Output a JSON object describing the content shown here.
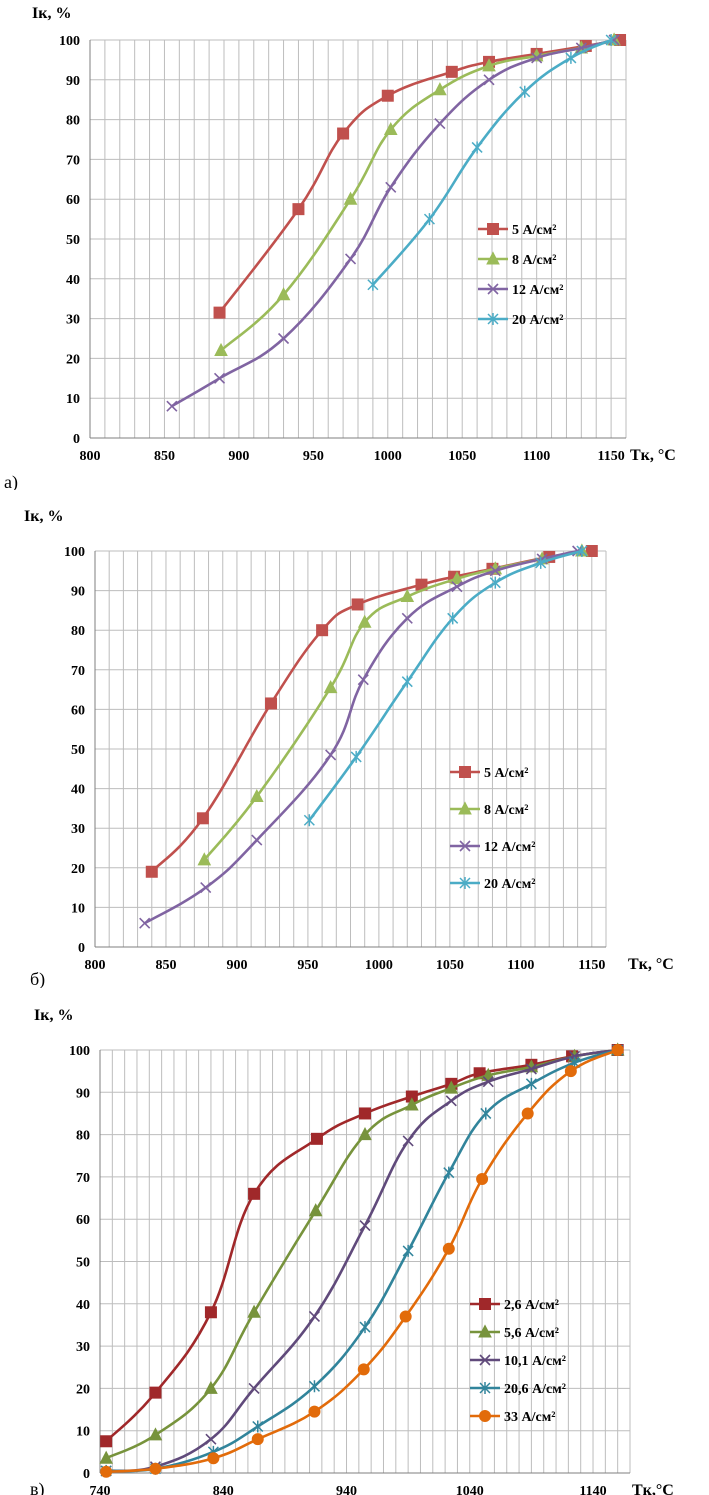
{
  "chart_data": [
    {
      "type": "line",
      "panel_label": "а)",
      "ylabel": "Iк, %",
      "xlabel": "Tк, °C",
      "xlim": [
        800,
        1160
      ],
      "ylim": [
        0,
        100
      ],
      "xticks": [
        800,
        850,
        900,
        950,
        1000,
        1050,
        1100,
        1150
      ],
      "yticks": [
        0,
        10,
        20,
        30,
        40,
        50,
        60,
        70,
        80,
        90,
        100
      ],
      "grid": true,
      "legend_position": "center-right",
      "series": [
        {
          "name": "5 А/см²",
          "color": "#c0504d",
          "marker": "square",
          "x": [
            887,
            940,
            970,
            1000,
            1043,
            1068,
            1100,
            1133,
            1156
          ],
          "y": [
            31.5,
            57.5,
            76.5,
            86,
            92,
            94.5,
            96.5,
            98.5,
            100
          ]
        },
        {
          "name": "8 А/см²",
          "color": "#9bbb59",
          "marker": "triangle",
          "x": [
            888,
            930,
            975,
            1002,
            1035,
            1068,
            1100,
            1130,
            1152
          ],
          "y": [
            22,
            36,
            60,
            77.5,
            87.5,
            93.5,
            96,
            98,
            100
          ]
        },
        {
          "name": "12 А/см²",
          "color": "#8064a2",
          "marker": "cross",
          "x": [
            855,
            887,
            930,
            975,
            1002,
            1035,
            1068,
            1100,
            1130,
            1152
          ],
          "y": [
            8,
            15,
            25,
            45,
            63,
            79,
            90,
            95.5,
            98,
            100
          ]
        },
        {
          "name": "20 А/см²",
          "color": "#4bacc6",
          "marker": "star",
          "x": [
            990,
            1028,
            1060,
            1092,
            1123,
            1150
          ],
          "y": [
            38.5,
            55,
            73,
            87,
            95.5,
            100
          ]
        }
      ]
    },
    {
      "type": "line",
      "panel_label": "б)",
      "ylabel": "Iк, %",
      "xlabel": "Tк, °C",
      "xlim": [
        800,
        1160
      ],
      "ylim": [
        0,
        100
      ],
      "xticks": [
        800,
        850,
        900,
        950,
        1000,
        1050,
        1100,
        1150
      ],
      "yticks": [
        0,
        10,
        20,
        30,
        40,
        50,
        60,
        70,
        80,
        90,
        100
      ],
      "grid": true,
      "legend_position": "center-right",
      "series": [
        {
          "name": "5 А/см²",
          "color": "#c0504d",
          "marker": "square",
          "x": [
            840,
            876,
            924,
            960,
            985,
            1030,
            1053,
            1080,
            1120,
            1150
          ],
          "y": [
            19,
            32.5,
            61.5,
            80,
            86.5,
            91.5,
            93.5,
            95.5,
            98.5,
            100
          ]
        },
        {
          "name": "8 А/см²",
          "color": "#9bbb59",
          "marker": "triangle",
          "x": [
            877,
            914,
            966,
            990,
            1020,
            1055,
            1082,
            1115,
            1143
          ],
          "y": [
            22,
            38,
            65.5,
            82,
            88.5,
            93,
            95.5,
            98,
            100
          ]
        },
        {
          "name": "12 А/см²",
          "color": "#8064a2",
          "marker": "cross",
          "x": [
            835,
            878,
            914,
            966,
            989,
            1020,
            1055,
            1082,
            1115,
            1140
          ],
          "y": [
            6,
            15,
            27,
            48.5,
            67.5,
            83,
            91,
            95,
            98,
            100
          ]
        },
        {
          "name": "20 А/см²",
          "color": "#4bacc6",
          "marker": "star",
          "x": [
            951,
            984,
            1020,
            1052,
            1082,
            1114,
            1143
          ],
          "y": [
            32,
            48,
            67,
            83,
            92,
            97,
            100
          ]
        }
      ]
    },
    {
      "type": "line",
      "panel_label": "в)",
      "ylabel": "Iк, %",
      "xlabel": "Tк,°C",
      "xlim": [
        740,
        1170
      ],
      "ylim": [
        0,
        100
      ],
      "xticks": [
        740,
        840,
        940,
        1040,
        1140
      ],
      "yticks": [
        0,
        10,
        20,
        30,
        40,
        50,
        60,
        70,
        80,
        90,
        100
      ],
      "grid": true,
      "legend_position": "bottom-right",
      "series": [
        {
          "name": "2,6 А/см²",
          "color": "#a0282a",
          "marker": "square",
          "x": [
            745,
            785,
            830,
            865,
            916,
            955,
            993,
            1025,
            1048,
            1090,
            1123,
            1160
          ],
          "y": [
            7.5,
            19,
            38,
            66,
            79,
            85,
            89,
            92,
            94.5,
            96.5,
            98.5,
            100
          ]
        },
        {
          "name": "5,6 А/см²",
          "color": "#77933c",
          "marker": "triangle",
          "x": [
            745,
            785,
            830,
            865,
            915,
            955,
            993,
            1025,
            1055,
            1090,
            1125,
            1160
          ],
          "y": [
            3.5,
            9,
            20,
            38,
            62,
            80,
            87,
            91,
            94,
            96,
            98.5,
            100
          ]
        },
        {
          "name": "10,1 А/см²",
          "color": "#604a7b",
          "marker": "cross",
          "x": [
            745,
            785,
            830,
            865,
            914,
            955,
            990,
            1025,
            1055,
            1090,
            1125,
            1160
          ],
          "y": [
            0.5,
            1.5,
            8,
            20,
            37,
            58.5,
            78.5,
            88,
            92.5,
            95.5,
            98.5,
            100
          ]
        },
        {
          "name": "20,6 А/см²",
          "color": "#31849b",
          "marker": "star",
          "x": [
            745,
            785,
            832,
            868,
            914,
            955,
            990,
            1023,
            1053,
            1090,
            1125,
            1160
          ],
          "y": [
            0.5,
            1,
            5,
            11,
            20.5,
            34.5,
            52.5,
            71,
            85,
            92,
            97,
            100
          ]
        },
        {
          "name": "33 А/см²",
          "color": "#e26b0a",
          "marker": "circle",
          "x": [
            745,
            785,
            832,
            868,
            914,
            954,
            988,
            1023,
            1050,
            1087,
            1122,
            1160
          ],
          "y": [
            0.3,
            1,
            3.5,
            8,
            14.5,
            24.5,
            37,
            53,
            69.5,
            85,
            95,
            100
          ]
        }
      ]
    }
  ]
}
